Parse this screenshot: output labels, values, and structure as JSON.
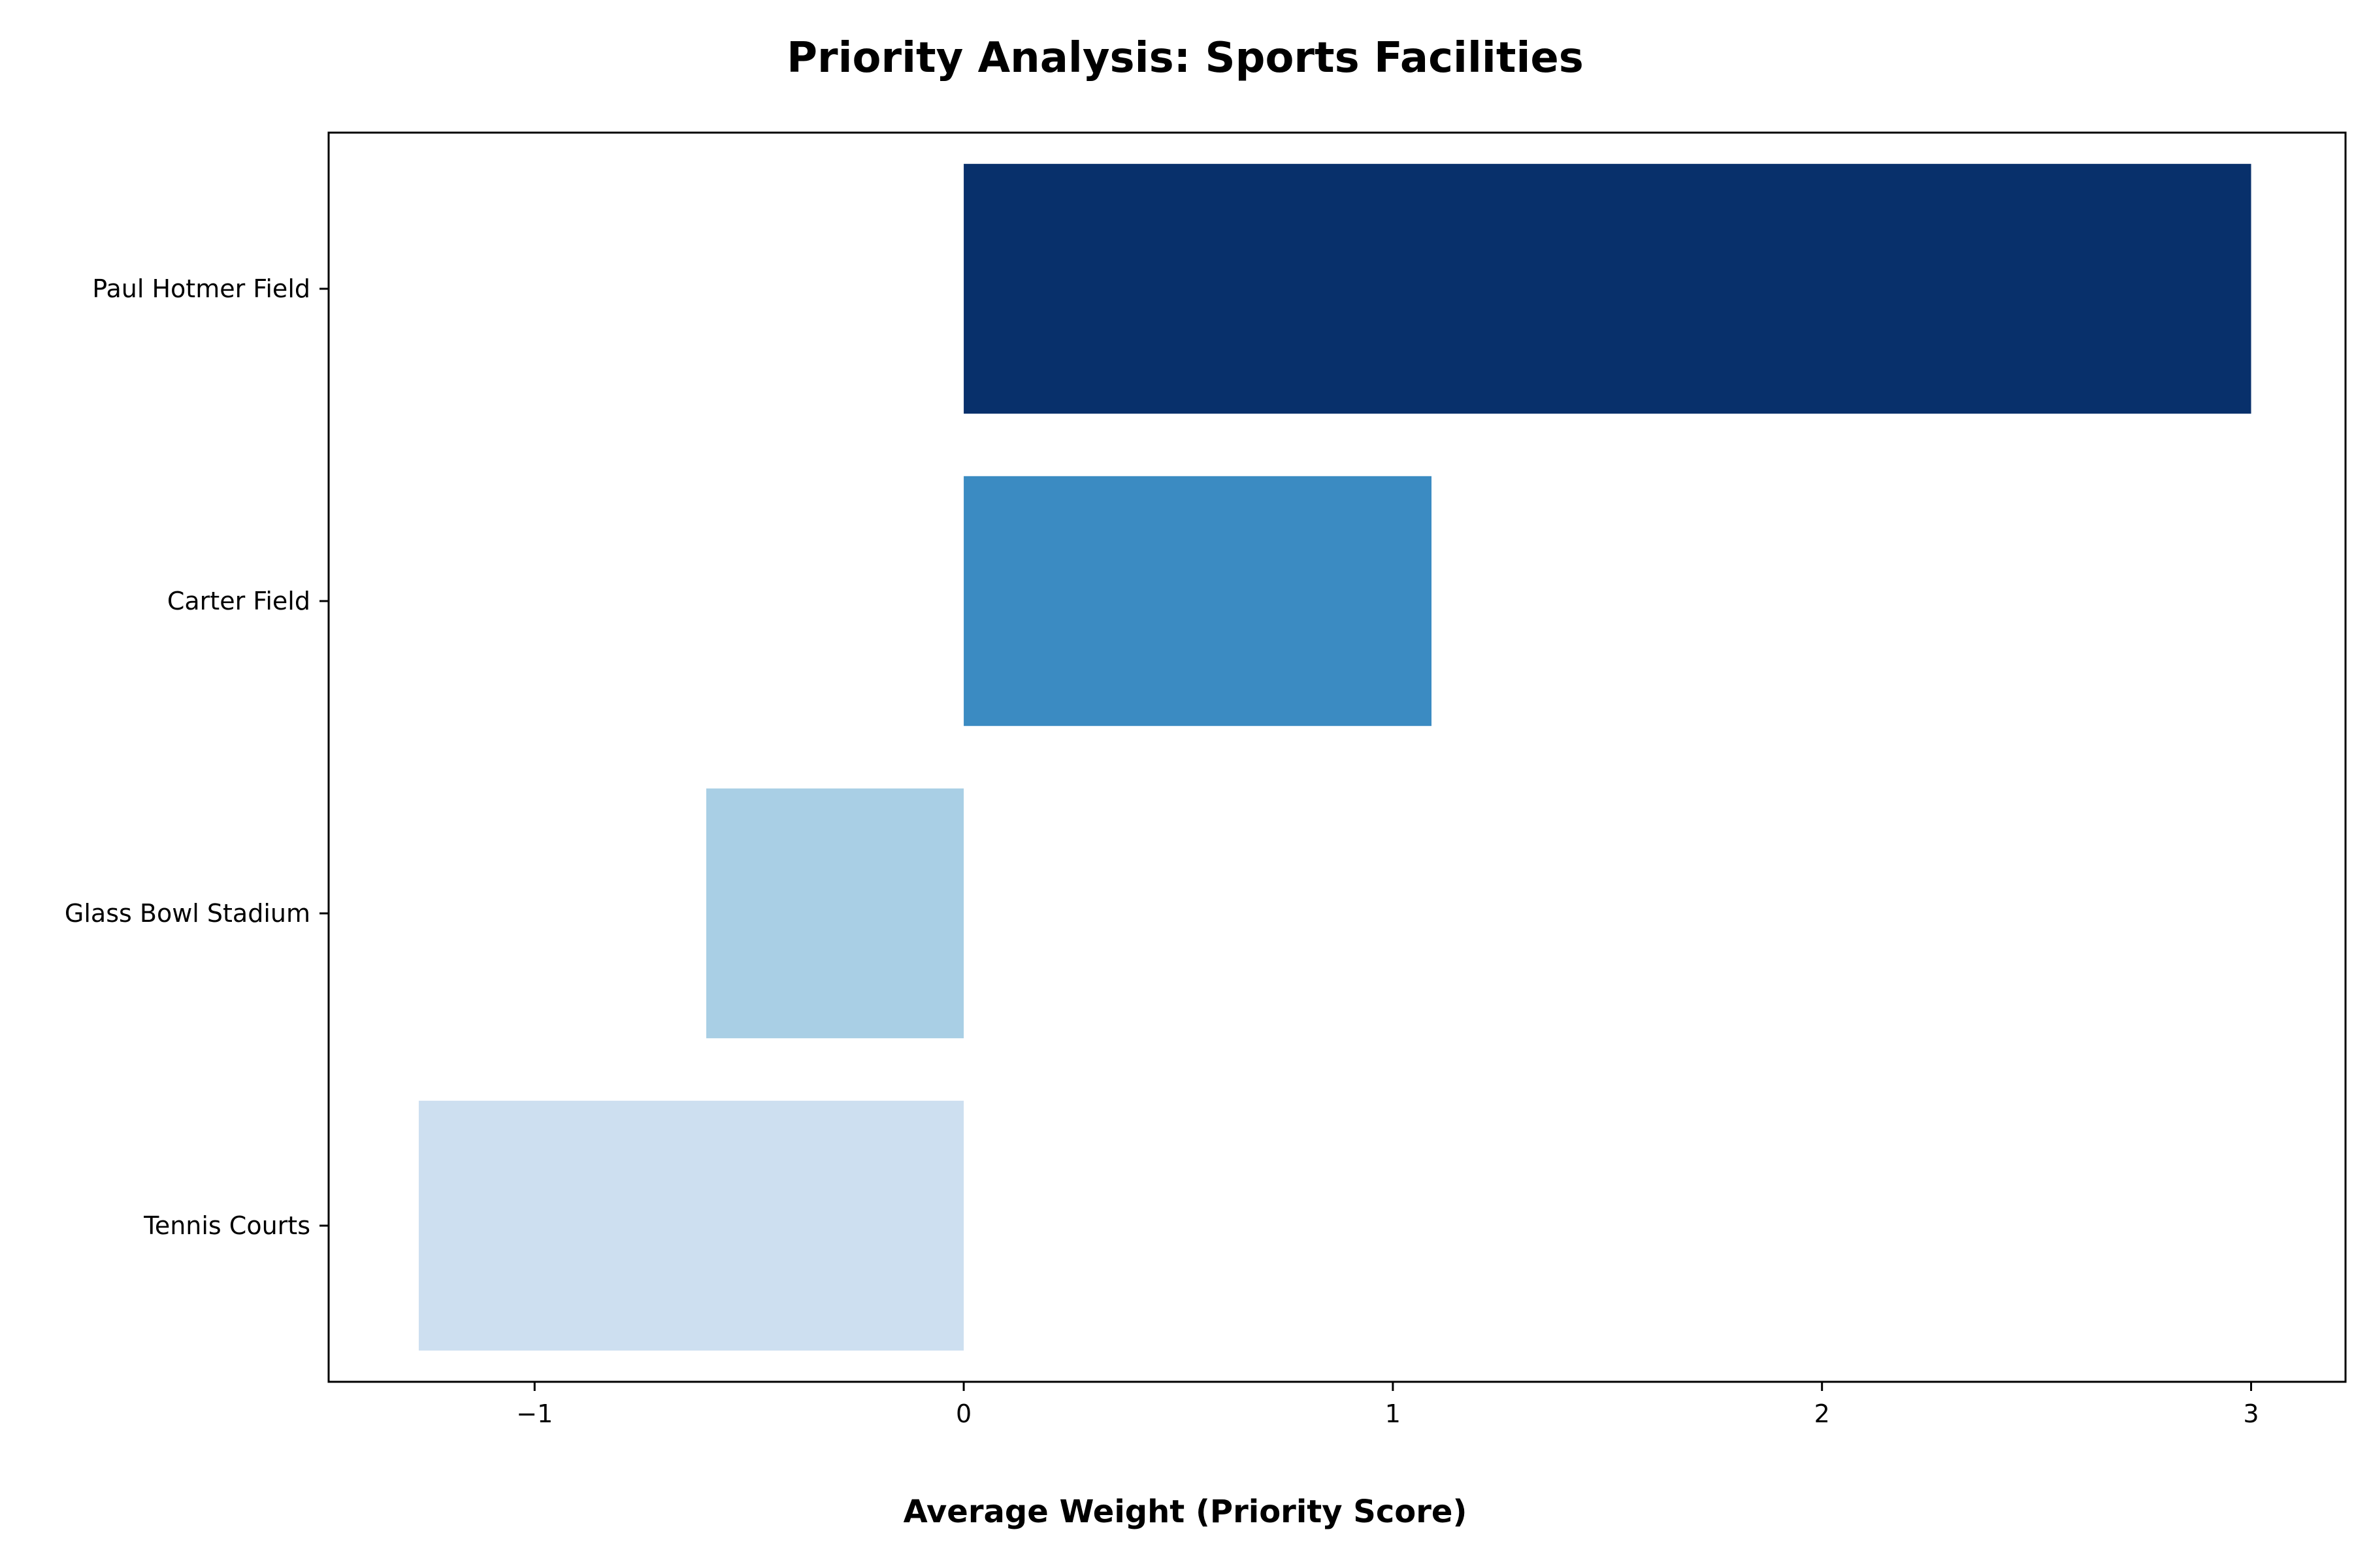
{
  "chart_data": {
    "type": "bar",
    "orientation": "horizontal",
    "title": "Priority Analysis: Sports Facilities",
    "xlabel": "Average Weight (Priority Score)",
    "ylabel": "",
    "categories": [
      "Paul Hotmer Field",
      "Carter Field",
      "Glass Bowl Stadium",
      "Tennis Courts"
    ],
    "values": [
      3.0,
      1.09,
      -0.6,
      -1.27
    ],
    "colors": [
      "#08306b",
      "#3b8bc2",
      "#a9cfe5",
      "#cddff0"
    ],
    "xlim": [
      -1.48,
      3.22
    ],
    "xticks": [
      -1,
      0,
      1,
      2,
      3
    ],
    "xtick_labels": [
      "−1",
      "0",
      "1",
      "2",
      "3"
    ],
    "grid": false,
    "legend": "none"
  }
}
